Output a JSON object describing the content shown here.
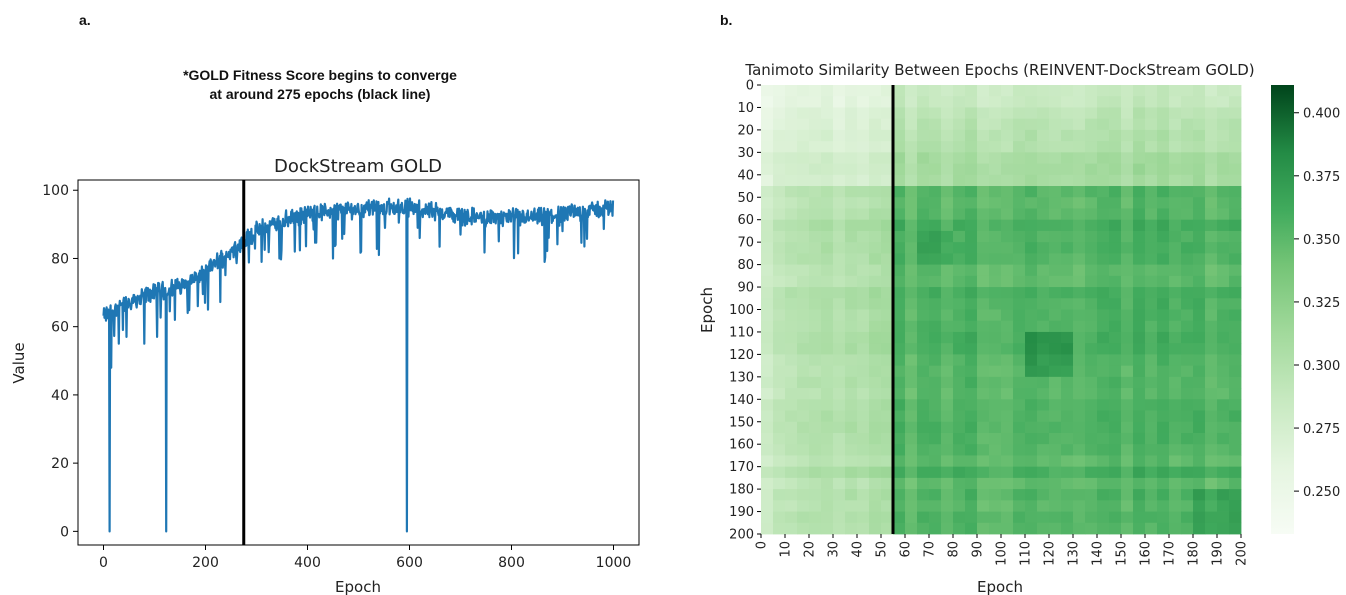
{
  "panel_a": {
    "label": "a.",
    "note_lines": [
      "*GOLD Fitness Score begins to converge",
      "at around 275 epochs (black line)"
    ]
  },
  "panel_b": {
    "label": "b."
  },
  "colors": {
    "line": "#1f77b4",
    "marker": "#000000",
    "heat_low": "#f7fcf5",
    "heat_high": "#00441b"
  },
  "chart_data": [
    {
      "type": "line",
      "title": "DockStream GOLD",
      "xlabel": "Epoch",
      "ylabel": "Value",
      "xlim": [
        -50,
        1050
      ],
      "ylim": [
        -4,
        103
      ],
      "xticks": [
        0,
        200,
        400,
        600,
        800,
        1000
      ],
      "yticks": [
        0,
        20,
        40,
        60,
        80,
        100
      ],
      "vline_x": 275,
      "trend": [
        [
          0,
          63
        ],
        [
          25,
          65
        ],
        [
          60,
          68
        ],
        [
          100,
          70
        ],
        [
          150,
          72
        ],
        [
          200,
          76
        ],
        [
          240,
          81
        ],
        [
          275,
          85
        ],
        [
          300,
          88
        ],
        [
          350,
          91
        ],
        [
          400,
          93
        ],
        [
          450,
          94
        ],
        [
          500,
          94.5
        ],
        [
          550,
          95
        ],
        [
          600,
          95
        ],
        [
          650,
          94
        ],
        [
          700,
          92.5
        ],
        [
          750,
          92
        ],
        [
          800,
          92
        ],
        [
          850,
          92
        ],
        [
          900,
          93
        ],
        [
          950,
          94
        ],
        [
          999,
          95
        ]
      ],
      "dips": [
        [
          12,
          0
        ],
        [
          15,
          48
        ],
        [
          30,
          55
        ],
        [
          45,
          57
        ],
        [
          80,
          55
        ],
        [
          105,
          57
        ],
        [
          123,
          0
        ],
        [
          140,
          62
        ],
        [
          165,
          64
        ],
        [
          185,
          66
        ],
        [
          205,
          65
        ],
        [
          275,
          72
        ],
        [
          310,
          79
        ],
        [
          345,
          80
        ],
        [
          375,
          82
        ],
        [
          450,
          80
        ],
        [
          505,
          82
        ],
        [
          540,
          81
        ],
        [
          595,
          0
        ],
        [
          620,
          86
        ],
        [
          700,
          87
        ],
        [
          865,
          79
        ],
        [
          900,
          88
        ]
      ],
      "grid": false
    },
    {
      "type": "heatmap",
      "title": "Tanimoto Similarity Between Epochs (REINVENT-DockStream GOLD)",
      "xlabel": "Epoch",
      "ylabel": "Epoch",
      "range": [
        0,
        200
      ],
      "ticks": [
        0,
        10,
        20,
        30,
        40,
        50,
        60,
        70,
        80,
        90,
        100,
        110,
        120,
        130,
        140,
        150,
        160,
        170,
        180,
        190,
        200
      ],
      "vline_x": 55,
      "colorbar": {
        "min": 0.233,
        "max": 0.411,
        "ticks": [
          0.25,
          0.275,
          0.3,
          0.325,
          0.35,
          0.375,
          0.4
        ],
        "tick_labels": [
          "0.250",
          "0.275",
          "0.300",
          "0.325",
          "0.350",
          "0.375",
          "0.400"
        ]
      },
      "cmap": "Greens"
    }
  ]
}
